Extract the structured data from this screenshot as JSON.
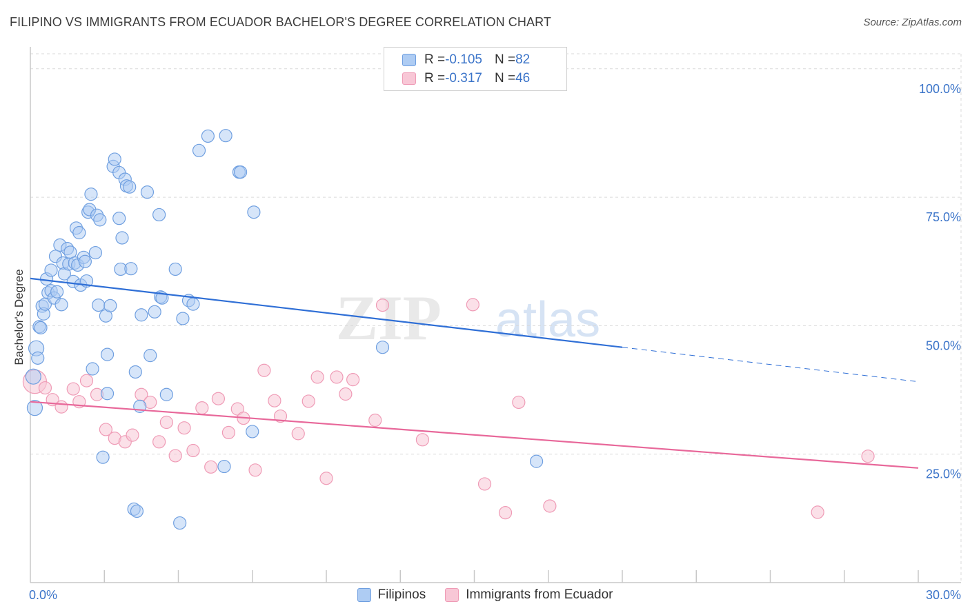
{
  "title": "FILIPINO VS IMMIGRANTS FROM ECUADOR BACHELOR'S DEGREE CORRELATION CHART",
  "source": "Source: ZipAtlas.com",
  "watermark": {
    "zip": "ZIP",
    "atlas": "atlas"
  },
  "legend": {
    "rows": [
      {
        "r_label": "R = ",
        "r_value": "-0.105",
        "n_label": "N = ",
        "n_value": "82"
      },
      {
        "r_label": "R = ",
        "r_value": "-0.317",
        "n_label": "N = ",
        "n_value": "46"
      }
    ]
  },
  "bottom_legend": {
    "series1": "Filipinos",
    "series2": "Immigrants from Ecuador"
  },
  "colors": {
    "blue_fill": "#aeccf3",
    "blue_stroke": "#6f9fe0",
    "blue_line": "#2f6fd6",
    "pink_fill": "#f8c7d6",
    "pink_stroke": "#ef9bb6",
    "pink_line": "#e8689a",
    "axis_text": "#3b74c9",
    "grid": "#d9d9d9"
  },
  "chart_data": {
    "type": "scatter",
    "title": "FILIPINO VS IMMIGRANTS FROM ECUADOR BACHELOR'S DEGREE CORRELATION CHART",
    "xlabel": "",
    "ylabel": "Bachelor's Degree",
    "xlim": [
      0,
      30
    ],
    "ylim": [
      0,
      104
    ],
    "x_tick_labels": [
      "0.0%",
      "30.0%"
    ],
    "y_ticks": [
      25,
      50,
      75,
      100
    ],
    "y_tick_labels": [
      "25.0%",
      "50.0%",
      "75.0%",
      "100.0%"
    ],
    "grid": true,
    "series": [
      {
        "name": "Filipinos",
        "R": -0.105,
        "N": 82,
        "trend": {
          "x0": 0,
          "y0": 59.2,
          "x1": 20,
          "y1": 45.8,
          "dash_x1": 30,
          "dash_y1": 39.1
        },
        "points": [
          [
            0.1,
            40.1
          ],
          [
            0.15,
            34
          ],
          [
            0.2,
            45.6
          ],
          [
            0.25,
            43.7
          ],
          [
            0.3,
            49.8
          ],
          [
            0.35,
            49.6
          ],
          [
            0.4,
            53.8
          ],
          [
            0.45,
            52.3
          ],
          [
            0.5,
            54.2
          ],
          [
            0.55,
            59.1
          ],
          [
            0.6,
            56.4
          ],
          [
            0.7,
            60.8
          ],
          [
            0.7,
            56.8
          ],
          [
            0.8,
            55.4
          ],
          [
            0.85,
            63.5
          ],
          [
            0.9,
            56.6
          ],
          [
            1.0,
            65.7
          ],
          [
            1.05,
            54.1
          ],
          [
            1.1,
            62.2
          ],
          [
            1.15,
            60.1
          ],
          [
            1.25,
            65
          ],
          [
            1.3,
            62
          ],
          [
            1.35,
            64.3
          ],
          [
            1.45,
            58.6
          ],
          [
            1.5,
            62.2
          ],
          [
            1.55,
            69
          ],
          [
            1.6,
            61.8
          ],
          [
            1.65,
            68.1
          ],
          [
            1.7,
            57.9
          ],
          [
            1.8,
            63.3
          ],
          [
            1.85,
            62.5
          ],
          [
            1.9,
            58.7
          ],
          [
            1.95,
            72.1
          ],
          [
            2.0,
            72.6
          ],
          [
            2.05,
            75.6
          ],
          [
            2.1,
            41.6
          ],
          [
            2.2,
            64.2
          ],
          [
            2.25,
            71.5
          ],
          [
            2.35,
            70.6
          ],
          [
            2.3,
            54
          ],
          [
            2.45,
            24.4
          ],
          [
            2.55,
            51.9
          ],
          [
            2.6,
            44.4
          ],
          [
            2.6,
            36.8
          ],
          [
            2.7,
            53.9
          ],
          [
            2.8,
            81
          ],
          [
            2.85,
            82.4
          ],
          [
            3.0,
            70.9
          ],
          [
            3.0,
            79.8
          ],
          [
            3.05,
            61
          ],
          [
            3.1,
            67.1
          ],
          [
            3.2,
            78.5
          ],
          [
            3.25,
            77.2
          ],
          [
            3.35,
            77
          ],
          [
            3.4,
            61.1
          ],
          [
            3.5,
            14.3
          ],
          [
            3.55,
            41
          ],
          [
            3.6,
            13.9
          ],
          [
            3.7,
            34.3
          ],
          [
            3.75,
            52.1
          ],
          [
            3.95,
            76
          ],
          [
            4.05,
            44.2
          ],
          [
            4.2,
            52.7
          ],
          [
            4.35,
            71.6
          ],
          [
            4.4,
            55.6
          ],
          [
            4.45,
            55.4
          ],
          [
            4.6,
            36.6
          ],
          [
            4.9,
            61
          ],
          [
            5.05,
            11.6
          ],
          [
            5.15,
            51.4
          ],
          [
            5.35,
            54.9
          ],
          [
            5.5,
            54.2
          ],
          [
            5.7,
            84.1
          ],
          [
            6.0,
            86.9
          ],
          [
            6.55,
            22.6
          ],
          [
            6.6,
            87
          ],
          [
            7.05,
            79.9
          ],
          [
            7.1,
            79.9
          ],
          [
            7.5,
            29.4
          ],
          [
            7.55,
            72.1
          ],
          [
            11.9,
            45.8
          ],
          [
            17.1,
            23.6
          ]
        ]
      },
      {
        "name": "Immigrants from Ecuador",
        "R": -0.317,
        "N": 46,
        "trend": {
          "x0": 0,
          "y0": 35.2,
          "x1": 30,
          "y1": 22.3
        },
        "points": [
          [
            0.15,
            39.1
          ],
          [
            0.5,
            37.9
          ],
          [
            0.75,
            35.6
          ],
          [
            1.05,
            34.2
          ],
          [
            1.45,
            37.7
          ],
          [
            1.65,
            35.2
          ],
          [
            1.9,
            39.3
          ],
          [
            2.25,
            36.6
          ],
          [
            2.55,
            29.8
          ],
          [
            2.85,
            28.1
          ],
          [
            3.2,
            27.4
          ],
          [
            3.45,
            28.7
          ],
          [
            3.75,
            36.6
          ],
          [
            4.05,
            35.1
          ],
          [
            4.35,
            27.4
          ],
          [
            4.6,
            31.2
          ],
          [
            4.9,
            24.7
          ],
          [
            5.2,
            30.1
          ],
          [
            5.5,
            25.7
          ],
          [
            5.8,
            34
          ],
          [
            6.1,
            22.5
          ],
          [
            6.35,
            35.8
          ],
          [
            6.7,
            29.2
          ],
          [
            7.0,
            33.8
          ],
          [
            7.2,
            32
          ],
          [
            7.6,
            21.9
          ],
          [
            7.9,
            41.3
          ],
          [
            8.25,
            35.4
          ],
          [
            8.45,
            32.4
          ],
          [
            9.05,
            29
          ],
          [
            9.4,
            35.3
          ],
          [
            9.7,
            40
          ],
          [
            10.0,
            20.3
          ],
          [
            10.35,
            40
          ],
          [
            10.65,
            36.7
          ],
          [
            10.9,
            39.5
          ],
          [
            11.65,
            31.6
          ],
          [
            11.9,
            54
          ],
          [
            13.25,
            27.8
          ],
          [
            14.95,
            54.1
          ],
          [
            15.35,
            19.2
          ],
          [
            16.05,
            13.6
          ],
          [
            16.5,
            35.1
          ],
          [
            17.55,
            14.9
          ],
          [
            26.6,
            13.7
          ],
          [
            28.3,
            24.6
          ]
        ]
      }
    ]
  }
}
